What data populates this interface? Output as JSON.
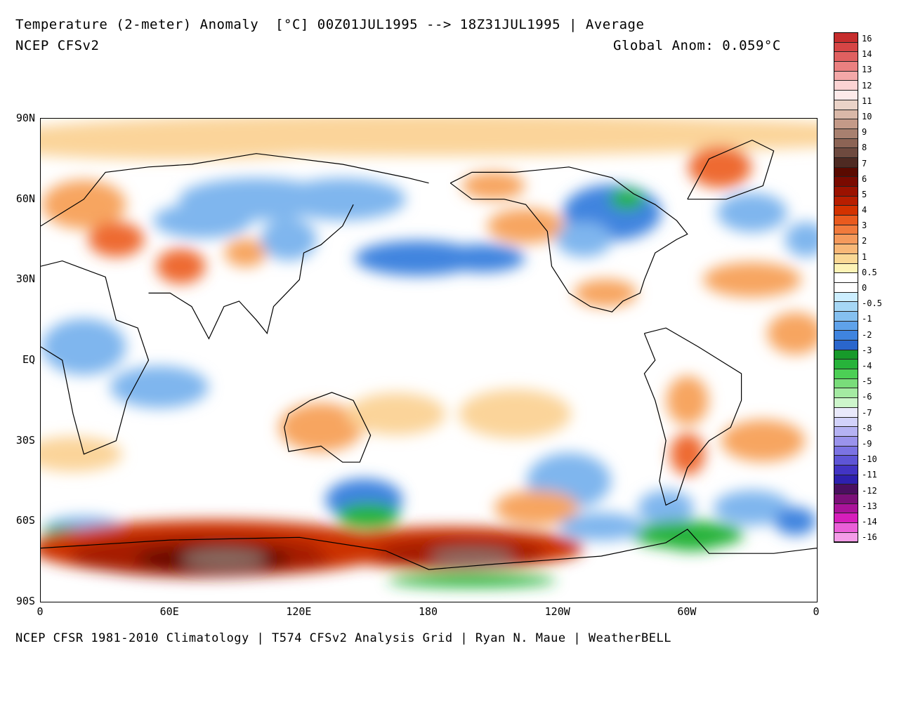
{
  "header": {
    "title": "Temperature (2-meter) Anomaly  [°C] 00Z01JUL1995 --> 18Z31JUL1995 | Average",
    "model": "NCEP CFSv2",
    "global_anomaly": "Global Anom: 0.059°C"
  },
  "footer": {
    "credits": "NCEP CFSR 1981-2010 Climatology | T574 CFSv2 Analysis Grid | Ryan N. Maue | WeatherBELL"
  },
  "axes": {
    "lat_labels": [
      "90N",
      "60N",
      "30N",
      "EQ",
      "30S",
      "60S",
      "90S"
    ],
    "lon_labels": [
      "0",
      "60E",
      "120E",
      "180",
      "120W",
      "60W",
      "0"
    ]
  },
  "colorbar": {
    "labels": [
      "16",
      "14",
      "13",
      "12",
      "11",
      "10",
      "9",
      "8",
      "7",
      "6",
      "5",
      "4",
      "3",
      "2",
      "1",
      "0.5",
      "0",
      "-0.5",
      "-1",
      "-2",
      "-3",
      "-4",
      "-5",
      "-6",
      "-7",
      "-8",
      "-9",
      "-10",
      "-11",
      "-12",
      "-13",
      "-14",
      "-16"
    ],
    "colors": [
      "#c62d2d",
      "#d64545",
      "#e06060",
      "#ea8080",
      "#f3a8a8",
      "#fbd3d3",
      "#fdeaea",
      "#ead3c8",
      "#d9b8a8",
      "#c49a88",
      "#a8806f",
      "#8c6455",
      "#6e4a3f",
      "#4e2a22",
      "#5a0a00",
      "#7a0a00",
      "#9b1200",
      "#b81e00",
      "#d33200",
      "#e95a1e",
      "#f17a3c",
      "#f59a5c",
      "#f8b878",
      "#fad895",
      "#fdf3b6",
      "#ffffff",
      "#ffffff",
      "#cceeff",
      "#a6d7f5",
      "#85c0f0",
      "#5fa2ea",
      "#3f84df",
      "#2a66cc",
      "#179a2a",
      "#27b33a",
      "#4ccf55",
      "#79dd7a",
      "#a4eaa2",
      "#cdf5cb",
      "#e9e9fb",
      "#d2d2fa",
      "#b5b2f3",
      "#9a93ec",
      "#7b73e3",
      "#5e55d6",
      "#4234c4",
      "#2e20ae",
      "#4a0f60",
      "#7b1079",
      "#aa139a",
      "#d61ebb",
      "#ea5fd8",
      "#f49ce8"
    ]
  },
  "chart_data": {
    "type": "heatmap",
    "title": "Temperature (2-meter) Anomaly [°C] 00Z01JUL1995 --> 18Z31JUL1995 | Average",
    "subtitle": "NCEP CFSv2",
    "annotation": "Global Anom: 0.059°C",
    "xlabel": "",
    "ylabel": "",
    "lat_range": [
      -90,
      90
    ],
    "lon_range": [
      0,
      360
    ],
    "scale": [
      -16,
      16
    ],
    "regions": [
      {
        "name": "East Antarctica warm",
        "lat": -73,
        "lon": 80,
        "value": 9
      },
      {
        "name": "West Pacific Antarctic warm",
        "lat": -73,
        "lon": 195,
        "value": 8
      },
      {
        "name": "Southern Ocean SE of Africa warm",
        "lat": -62,
        "lon": 40,
        "value": 5
      },
      {
        "name": "Southern Ocean S of NZ warm",
        "lat": -58,
        "lon": 210,
        "value": 4
      },
      {
        "name": "Antarctic Peninsula cold",
        "lat": -66,
        "lon": 295,
        "value": -4
      },
      {
        "name": "Tasman Sea cold",
        "lat": -55,
        "lon": 150,
        "value": -4
      },
      {
        "name": "Hudson Bay cold",
        "lat": 60,
        "lon": 268,
        "value": -4
      },
      {
        "name": "North Pacific cold",
        "lat": 38,
        "lon": 180,
        "value": -2
      },
      {
        "name": "Greenland warm",
        "lat": 72,
        "lon": 320,
        "value": 2
      },
      {
        "name": "North Atlantic warm",
        "lat": 30,
        "lon": 330,
        "value": 1.5
      },
      {
        "name": "Europe warm",
        "lat": 52,
        "lon": 10,
        "value": 2
      },
      {
        "name": "Central Asia warm",
        "lat": 35,
        "lon": 65,
        "value": 2
      },
      {
        "name": "Siberia cold",
        "lat": 60,
        "lon": 100,
        "value": -1.5
      },
      {
        "name": "Equatorial Pacific neutral",
        "lat": 0,
        "lon": 200,
        "value": 0
      },
      {
        "name": "South America warm",
        "lat": -20,
        "lon": 305,
        "value": 2
      }
    ]
  }
}
